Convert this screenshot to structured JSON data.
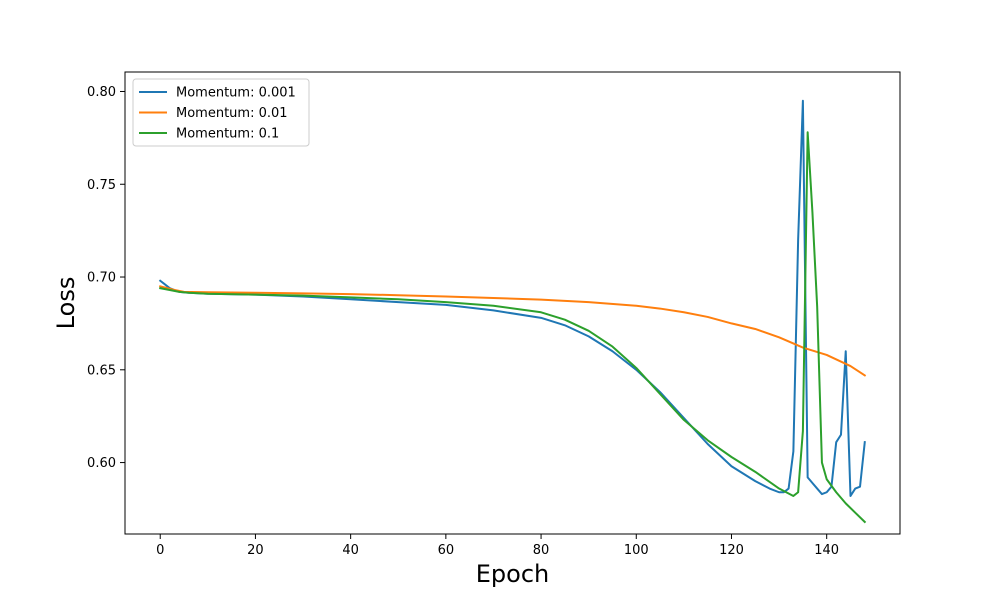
{
  "chart_data": {
    "type": "line",
    "title": "",
    "xlabel": "Epoch",
    "ylabel": "Loss",
    "xlim": [
      -7.4,
      155.4
    ],
    "ylim": [
      0.5615,
      0.8105
    ],
    "xticks": [
      0,
      20,
      40,
      60,
      80,
      100,
      120,
      140
    ],
    "yticks": [
      0.6,
      0.65,
      0.7,
      0.75,
      0.8
    ],
    "xtick_labels": [
      "0",
      "20",
      "40",
      "60",
      "80",
      "100",
      "120",
      "140"
    ],
    "ytick_labels": [
      "0.60",
      "0.65",
      "0.70",
      "0.75",
      "0.80"
    ],
    "grid": false,
    "legend_position": "upper-left",
    "series": [
      {
        "name": "Momentum: 0.001",
        "color": "#1f77b4",
        "x": [
          0,
          1,
          2,
          3,
          4,
          6,
          10,
          20,
          30,
          40,
          50,
          60,
          70,
          80,
          85,
          90,
          95,
          100,
          105,
          110,
          115,
          120,
          125,
          128,
          130,
          131,
          132,
          133,
          134,
          135,
          136,
          137,
          138,
          139,
          140,
          141,
          142,
          143,
          144,
          145,
          146,
          147,
          148
        ],
        "y": [
          0.698,
          0.696,
          0.694,
          0.693,
          0.692,
          0.6915,
          0.691,
          0.6905,
          0.6895,
          0.688,
          0.6865,
          0.685,
          0.682,
          0.678,
          0.674,
          0.668,
          0.66,
          0.65,
          0.638,
          0.624,
          0.61,
          0.598,
          0.59,
          0.586,
          0.584,
          0.584,
          0.586,
          0.606,
          0.72,
          0.795,
          0.592,
          0.589,
          0.586,
          0.583,
          0.584,
          0.587,
          0.611,
          0.615,
          0.66,
          0.582,
          0.586,
          0.587,
          0.611
        ]
      },
      {
        "name": "Momentum: 0.01",
        "color": "#ff7f0e",
        "x": [
          0,
          3,
          5,
          10,
          20,
          30,
          40,
          50,
          60,
          70,
          80,
          90,
          100,
          105,
          110,
          115,
          120,
          125,
          130,
          135,
          140,
          145,
          148
        ],
        "y": [
          0.695,
          0.693,
          0.692,
          0.6918,
          0.6915,
          0.6912,
          0.6908,
          0.6902,
          0.6895,
          0.6887,
          0.6878,
          0.6865,
          0.6845,
          0.683,
          0.681,
          0.6785,
          0.675,
          0.672,
          0.6675,
          0.662,
          0.658,
          0.652,
          0.647
        ]
      },
      {
        "name": "Momentum: 0.1",
        "color": "#2ca02c",
        "x": [
          0,
          2,
          4,
          6,
          10,
          20,
          30,
          40,
          50,
          60,
          70,
          80,
          85,
          90,
          95,
          100,
          105,
          110,
          115,
          120,
          125,
          130,
          133,
          134,
          135,
          136,
          137,
          138,
          139,
          140,
          142,
          144,
          146,
          148
        ],
        "y": [
          0.694,
          0.693,
          0.692,
          0.6915,
          0.691,
          0.6905,
          0.69,
          0.689,
          0.688,
          0.6865,
          0.6845,
          0.681,
          0.677,
          0.671,
          0.6625,
          0.651,
          0.637,
          0.623,
          0.612,
          0.603,
          0.595,
          0.586,
          0.582,
          0.584,
          0.617,
          0.778,
          0.735,
          0.684,
          0.6,
          0.591,
          0.584,
          0.578,
          0.573,
          0.568
        ]
      }
    ]
  }
}
